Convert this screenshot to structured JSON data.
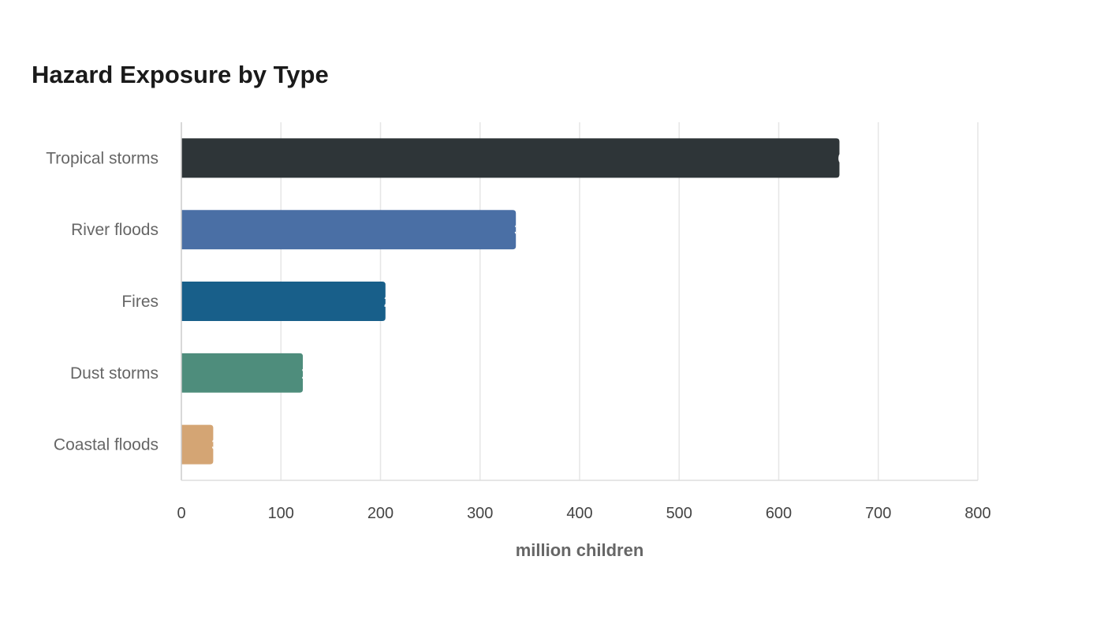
{
  "chart_data": {
    "type": "bar",
    "orientation": "horizontal",
    "title": "Hazard Exposure by Type",
    "xlabel": "million children",
    "ylabel": "",
    "categories": [
      "Tropical storms",
      "River floods",
      "Fires",
      "Dust storms",
      "Coastal floods"
    ],
    "values": [
      661,
      336,
      205,
      122,
      32
    ],
    "colors": [
      "#2e3538",
      "#4a6fa5",
      "#185f8a",
      "#4e8d7c",
      "#d4a574"
    ],
    "xlim": [
      0,
      800
    ],
    "xticks": [
      0,
      100,
      200,
      300,
      400,
      500,
      600,
      700,
      800
    ],
    "grid": "vertical",
    "legend": "none",
    "data_labels": "inside-end"
  }
}
